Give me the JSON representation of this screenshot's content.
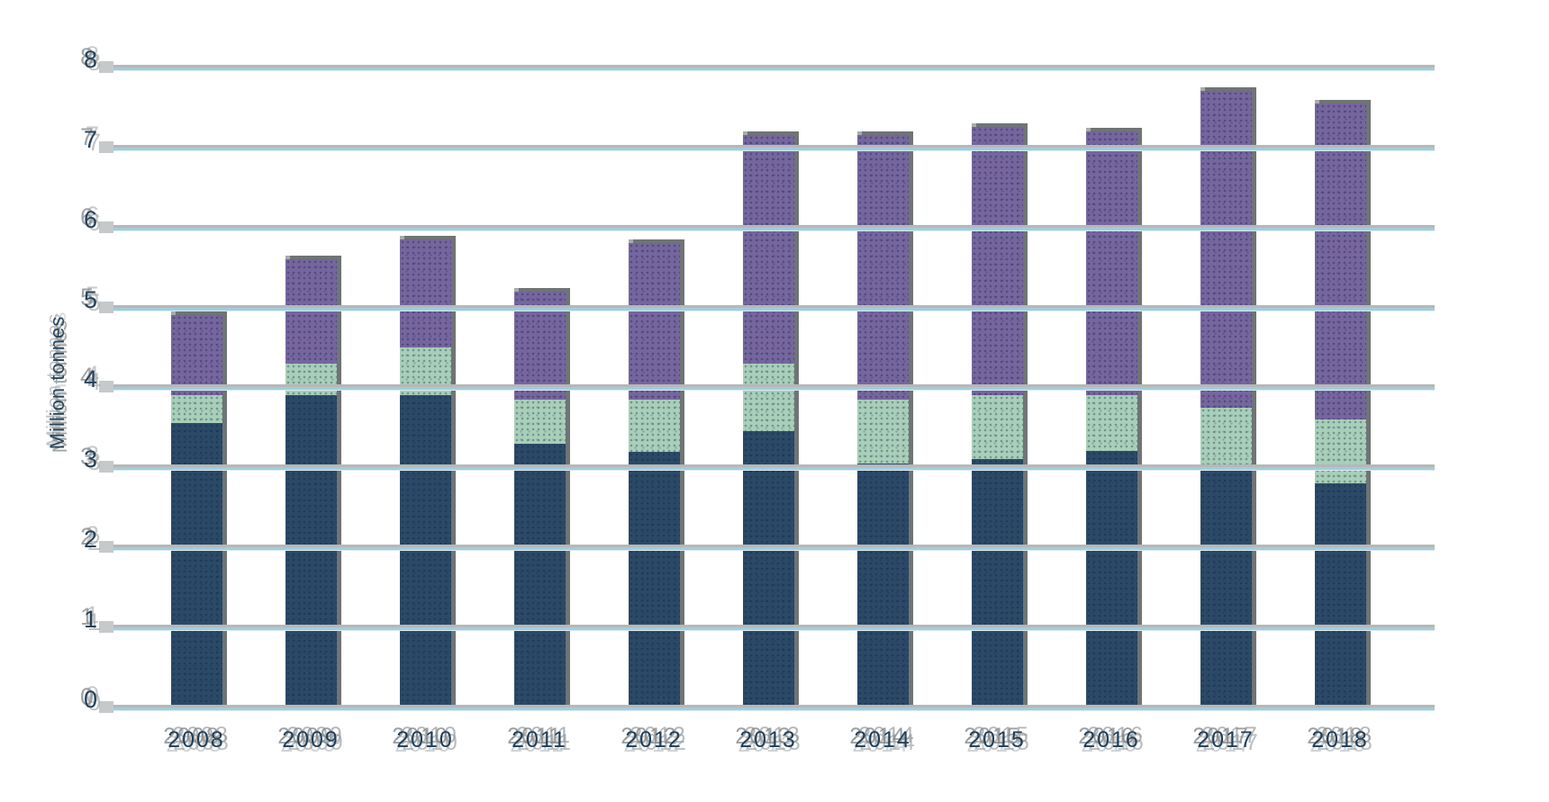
{
  "title": "",
  "y_axis": {
    "label": "Million tonnes",
    "ticks": [
      8,
      7,
      6,
      5,
      4,
      3,
      2,
      1,
      0
    ]
  },
  "x_axis": {
    "labels": [
      "2008",
      "2009",
      "2010",
      "2011",
      "2012",
      "2013",
      "2014",
      "2015",
      "2016",
      "2017",
      "2018"
    ]
  },
  "colors": {
    "background": "#ffffff",
    "bar_dark_blue": "#2b4a68",
    "bar_green": "#a8cfb9",
    "bar_purple": "#76669f",
    "gridline_blue": "#a3ccdc",
    "gridline_shadow_gray": "#b5b8b8",
    "bar_shadow_dark_gray": "#6f7476",
    "bar_cap_gray": "#a8abac",
    "axis_text": "#1f3e57"
  },
  "chart_data": {
    "type": "bar",
    "stacked": true,
    "title": "",
    "ylabel": "Million tonnes",
    "xlabel": "",
    "ylim": [
      0,
      8
    ],
    "ytick_interval": 1,
    "grid": true,
    "legend": false,
    "categories": [
      "2008",
      "2009",
      "2010",
      "2011",
      "2012",
      "2013",
      "2014",
      "2015",
      "2016",
      "2017",
      "2018"
    ],
    "series": [
      {
        "name": "bottom-segment-dark-blue",
        "color": "#2b4a68",
        "values": [
          3.55,
          3.9,
          3.9,
          3.3,
          3.2,
          3.45,
          3.05,
          3.1,
          3.2,
          3.0,
          2.8
        ]
      },
      {
        "name": "middle-segment-green",
        "color": "#a8cfb9",
        "values": [
          0.35,
          0.4,
          0.6,
          0.55,
          0.65,
          0.85,
          0.8,
          0.8,
          0.7,
          0.75,
          0.8
        ]
      },
      {
        "name": "top-segment-purple",
        "color": "#76669f",
        "values": [
          1.0,
          1.3,
          1.35,
          1.35,
          1.95,
          2.85,
          3.3,
          3.35,
          3.3,
          3.95,
          3.95
        ]
      }
    ],
    "stacked_totals": [
      4.9,
      5.6,
      5.85,
      5.2,
      5.8,
      7.15,
      7.15,
      7.25,
      7.2,
      7.7,
      7.55
    ]
  }
}
